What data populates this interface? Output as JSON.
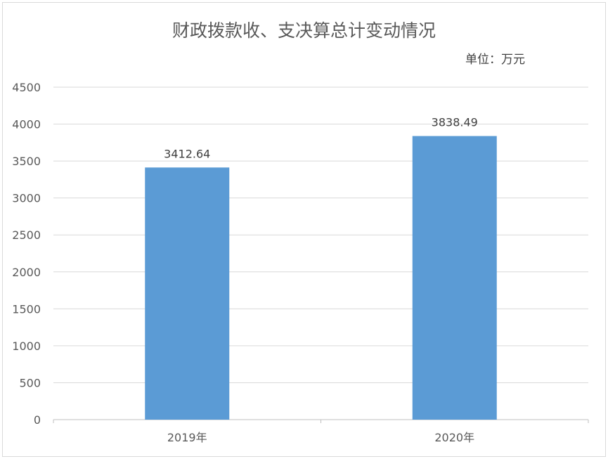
{
  "chart_data": {
    "type": "bar",
    "title": "财政拨款收、支决算总计变动情况",
    "unit": "单位：万元",
    "categories": [
      "2019年",
      "2020年"
    ],
    "values": [
      3412.64,
      3838.49
    ],
    "data_labels": [
      "3412.64",
      "3838.49"
    ],
    "ylim": [
      0,
      4500
    ],
    "yticks": [
      0,
      500,
      1000,
      1500,
      2000,
      2500,
      3000,
      3500,
      4000,
      4500
    ],
    "grid": true,
    "bar_color": "#5b9bd5"
  }
}
